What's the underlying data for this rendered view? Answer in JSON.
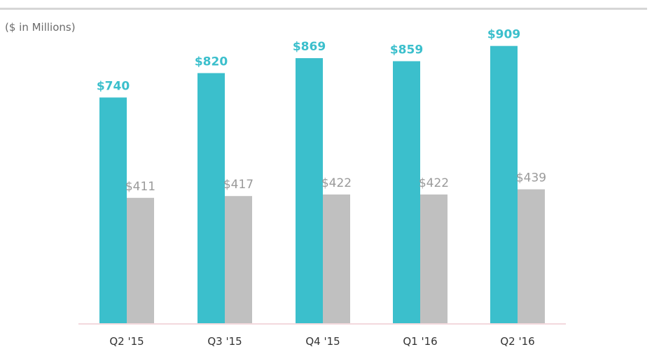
{
  "header": {
    "unit_label": "($ in Millions)"
  },
  "chart_data": {
    "type": "bar",
    "title": "",
    "xlabel": "",
    "ylabel": "($ in Millions)",
    "ylim": [
      0,
      1000
    ],
    "grid": false,
    "categories": [
      "Q2 '15",
      "Q3 '15",
      "Q4 '15",
      "Q1 '16",
      "Q2 '16"
    ],
    "series": [
      {
        "values": [
          740,
          820,
          869,
          859,
          909
        ],
        "color": "#3bbfcc",
        "label_color": "#3bbfcc"
      },
      {
        "values": [
          411,
          417,
          422,
          422,
          439
        ],
        "color": "#c0c0c0",
        "label_color": "#9a9a9a"
      }
    ],
    "data_labels": [
      [
        "$740",
        "$820",
        "$869",
        "$859",
        "$909"
      ],
      [
        "$411",
        "$417",
        "$422",
        "$422",
        "$439"
      ]
    ],
    "baseline_color": "#f3d9dd"
  }
}
